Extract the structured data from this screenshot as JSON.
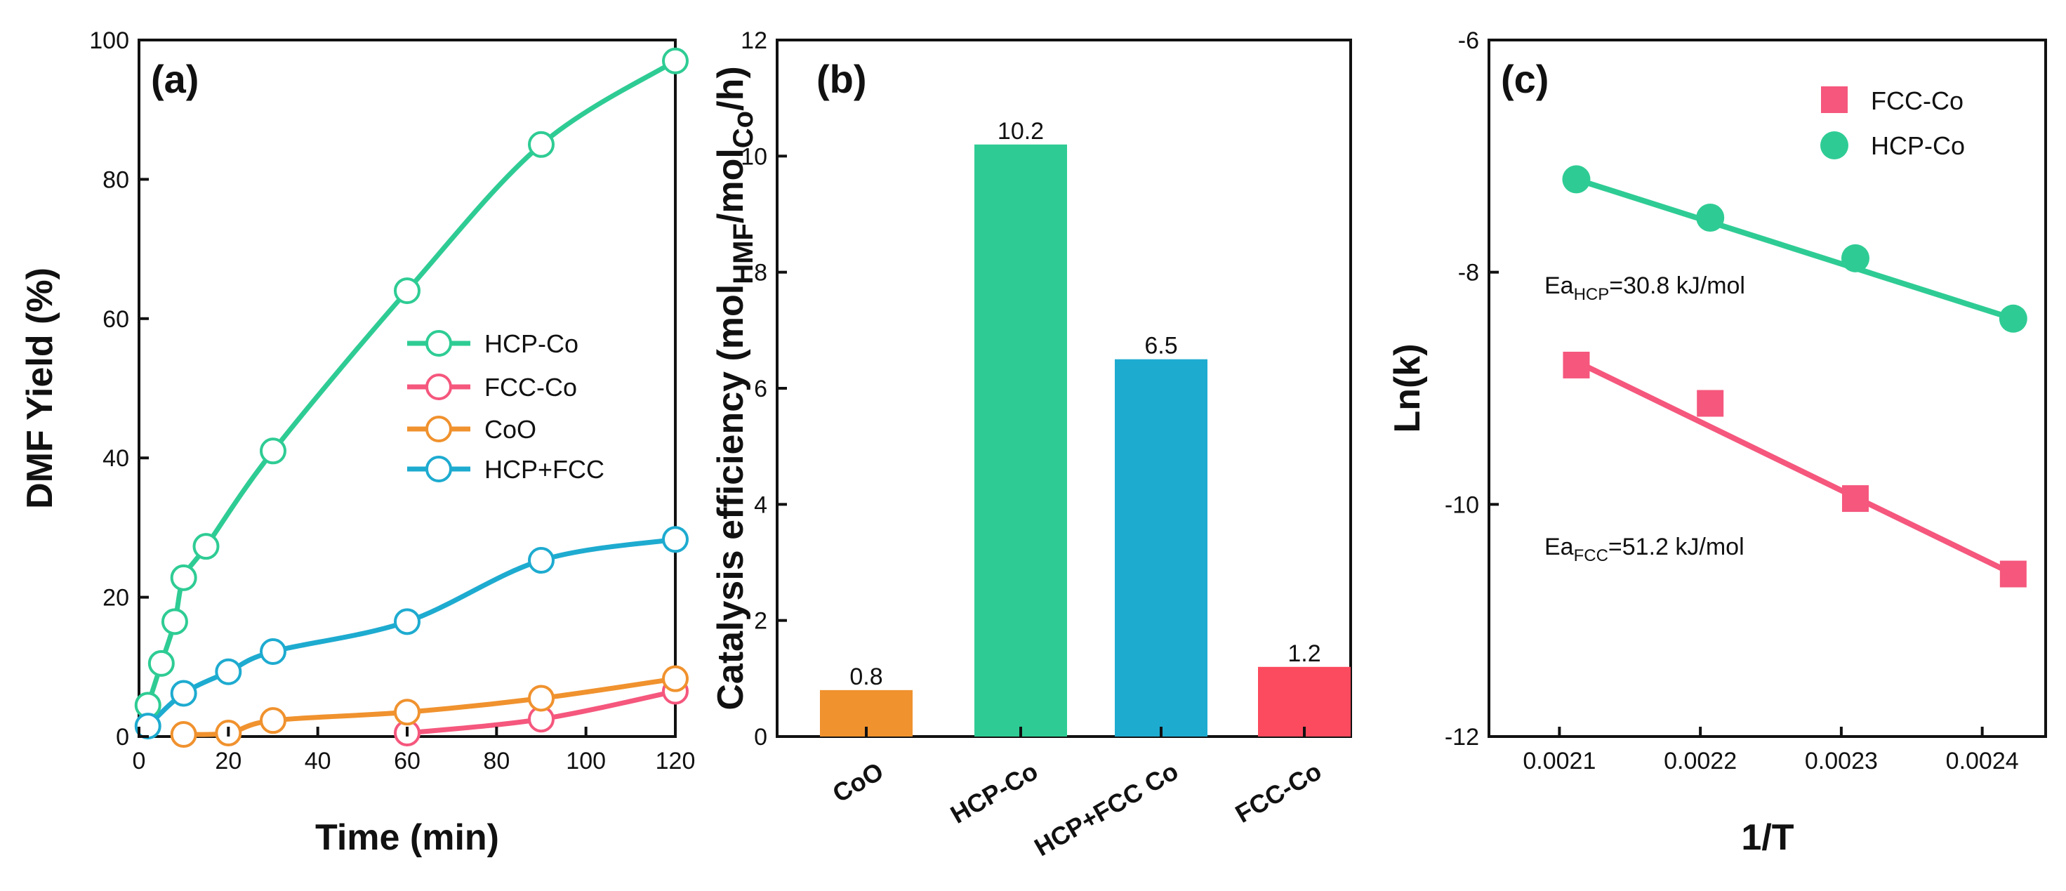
{
  "chart_data": [
    {
      "panel": "(a)",
      "type": "line",
      "xlabel": "Time (min)",
      "ylabel": "DMF Yield (%)",
      "xlim": [
        0,
        120
      ],
      "ylim": [
        0,
        100
      ],
      "xticks": [
        0,
        20,
        40,
        60,
        80,
        100,
        120
      ],
      "yticks": [
        0,
        20,
        40,
        60,
        80,
        100
      ],
      "legend_position": "center-right",
      "series": [
        {
          "name": "HCP-Co",
          "color": "#2ecc94",
          "x": [
            2,
            5,
            8,
            10,
            15,
            30,
            60,
            90,
            120
          ],
          "y": [
            4.5,
            10.5,
            16.5,
            22.8,
            27.3,
            41,
            64,
            85,
            97
          ]
        },
        {
          "name": "FCC-Co",
          "color": "#f5577d",
          "x": [
            60,
            90,
            120
          ],
          "y": [
            0.5,
            2.5,
            6.5
          ]
        },
        {
          "name": "CoO",
          "color": "#f0922e",
          "x": [
            10,
            20,
            30,
            60,
            90,
            120
          ],
          "y": [
            0.3,
            0.5,
            2.3,
            3.5,
            5.5,
            8.3
          ]
        },
        {
          "name": "HCP+FCC",
          "color": "#1eabd0",
          "x": [
            2,
            10,
            20,
            30,
            60,
            90,
            120
          ],
          "y": [
            1.5,
            6.2,
            9.3,
            12.2,
            16.5,
            25.3,
            28.3
          ]
        }
      ]
    },
    {
      "panel": "(b)",
      "type": "bar",
      "ylabel": {
        "main": "Catalysis efficiency (mol",
        "sub1": "HMF",
        "mid": "/mol",
        "sub2": "Co",
        "end": "/h)"
      },
      "ylim": [
        0,
        12
      ],
      "yticks": [
        0,
        2,
        4,
        6,
        8,
        10,
        12
      ],
      "categories": [
        "CoO",
        "HCP-Co",
        "HCP+FCC Co",
        "FCC-Co"
      ],
      "values": [
        0.8,
        10.2,
        6.5,
        1.2
      ],
      "value_labels": [
        "0.8",
        "10.2",
        "6.5",
        "1.2"
      ],
      "colors": [
        "#f0922e",
        "#2ecc94",
        "#1eabd0",
        "#fc4b5e"
      ]
    },
    {
      "panel": "(c)",
      "type": "scatter",
      "xlabel": "1/T",
      "ylabel": "Ln(k)",
      "xlim": [
        0.00205,
        0.002445
      ],
      "ylim": [
        -12,
        -6
      ],
      "xticks": [
        "0.0021",
        "0.0022",
        "0.0023",
        "0.0024"
      ],
      "yticks": [
        "-12",
        "-10",
        "-8",
        "-6"
      ],
      "legend_position": "top-right",
      "series": [
        {
          "name": "FCC-Co",
          "marker": "square",
          "color": "#f5577d",
          "x": [
            0.002112,
            0.002207,
            0.00231,
            0.002422
          ],
          "y": [
            -8.8,
            -9.13,
            -9.95,
            -10.6
          ],
          "fit": [
            -8.77,
            -10.6
          ]
        },
        {
          "name": "HCP-Co",
          "marker": "circle",
          "color": "#2ecc94",
          "x": [
            0.002112,
            0.002207,
            0.00231,
            0.002422
          ],
          "y": [
            -7.2,
            -7.53,
            -7.88,
            -8.4
          ],
          "fit": [
            -7.2,
            -8.4
          ]
        }
      ],
      "annotations": [
        {
          "pre": "Ea",
          "sub": "HCP",
          "post": "=30.8 kJ/mol"
        },
        {
          "pre": "Ea",
          "sub": "FCC",
          "post": "=51.2 kJ/mol"
        }
      ]
    }
  ]
}
